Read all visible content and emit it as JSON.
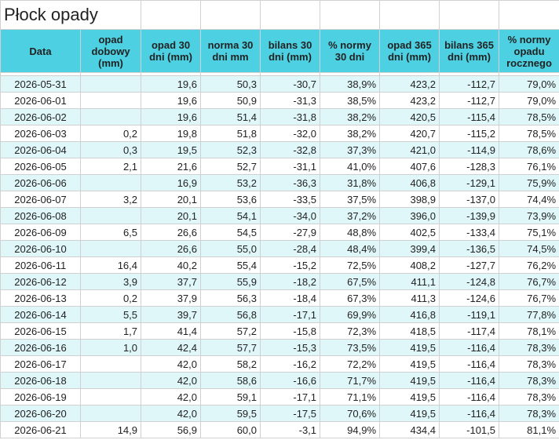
{
  "header": {
    "title": "Płock opady"
  },
  "table": {
    "columns": [
      "Data",
      "opad dobowy (mm)",
      "opad 30 dni (mm)",
      "norma 30 dni mm",
      "bilans 30 dni (mm)",
      "% normy 30 dni",
      "opad 365 dni (mm)",
      "bilans 365 dni (mm)",
      "% normy opadu rocznego"
    ],
    "rows": [
      [
        "2026-05-31",
        null,
        "19,6",
        "50,3",
        "-30,7",
        "38,9%",
        "423,2",
        "-112,7",
        "79,0%"
      ],
      [
        "2026-06-01",
        null,
        "19,6",
        "50,9",
        "-31,3",
        "38,5%",
        "423,2",
        "-112,7",
        "79,0%"
      ],
      [
        "2026-06-02",
        null,
        "19,6",
        "51,4",
        "-31,8",
        "38,2%",
        "420,5",
        "-115,4",
        "78,5%"
      ],
      [
        "2026-06-03",
        "0,2",
        "19,8",
        "51,8",
        "-32,0",
        "38,2%",
        "420,7",
        "-115,2",
        "78,5%"
      ],
      [
        "2026-06-04",
        "0,3",
        "19,5",
        "52,3",
        "-32,8",
        "37,3%",
        "421,0",
        "-114,9",
        "78,6%"
      ],
      [
        "2026-06-05",
        "2,1",
        "21,6",
        "52,7",
        "-31,1",
        "41,0%",
        "407,6",
        "-128,3",
        "76,1%"
      ],
      [
        "2026-06-06",
        null,
        "16,9",
        "53,2",
        "-36,3",
        "31,8%",
        "406,8",
        "-129,1",
        "75,9%"
      ],
      [
        "2026-06-07",
        "3,2",
        "20,1",
        "53,6",
        "-33,5",
        "37,5%",
        "398,9",
        "-137,0",
        "74,4%"
      ],
      [
        "2026-06-08",
        null,
        "20,1",
        "54,1",
        "-34,0",
        "37,2%",
        "396,0",
        "-139,9",
        "73,9%"
      ],
      [
        "2026-06-09",
        "6,5",
        "26,6",
        "54,5",
        "-27,9",
        "48,8%",
        "402,5",
        "-133,4",
        "75,1%"
      ],
      [
        "2026-06-10",
        null,
        "26,6",
        "55,0",
        "-28,4",
        "48,4%",
        "399,4",
        "-136,5",
        "74,5%"
      ],
      [
        "2026-06-11",
        "16,4",
        "40,2",
        "55,4",
        "-15,2",
        "72,5%",
        "408,2",
        "-127,7",
        "76,2%"
      ],
      [
        "2026-06-12",
        "3,9",
        "37,7",
        "55,9",
        "-18,2",
        "67,5%",
        "411,1",
        "-124,8",
        "76,7%"
      ],
      [
        "2026-06-13",
        "0,2",
        "37,9",
        "56,3",
        "-18,4",
        "67,3%",
        "411,3",
        "-124,6",
        "76,7%"
      ],
      [
        "2026-06-14",
        "5,5",
        "39,7",
        "56,8",
        "-17,1",
        "69,9%",
        "416,8",
        "-119,1",
        "77,8%"
      ],
      [
        "2026-06-15",
        "1,7",
        "41,4",
        "57,2",
        "-15,8",
        "72,3%",
        "418,5",
        "-117,4",
        "78,1%"
      ],
      [
        "2026-06-16",
        "1,0",
        "42,4",
        "57,7",
        "-15,3",
        "73,5%",
        "419,5",
        "-116,4",
        "78,3%"
      ],
      [
        "2026-06-17",
        null,
        "42,0",
        "58,2",
        "-16,2",
        "72,2%",
        "419,5",
        "-116,4",
        "78,3%"
      ],
      [
        "2026-06-18",
        null,
        "42,0",
        "58,6",
        "-16,6",
        "71,7%",
        "419,5",
        "-116,4",
        "78,3%"
      ],
      [
        "2026-06-19",
        null,
        "42,0",
        "59,1",
        "-17,1",
        "71,1%",
        "419,5",
        "-116,4",
        "78,3%"
      ],
      [
        "2026-06-20",
        null,
        "42,0",
        "59,5",
        "-17,5",
        "70,6%",
        "419,5",
        "-116,4",
        "78,3%"
      ],
      [
        "2026-06-21",
        "14,9",
        "56,9",
        "60,0",
        "-3,1",
        "94,9%",
        "434,4",
        "-101,5",
        "81,1%"
      ]
    ]
  }
}
